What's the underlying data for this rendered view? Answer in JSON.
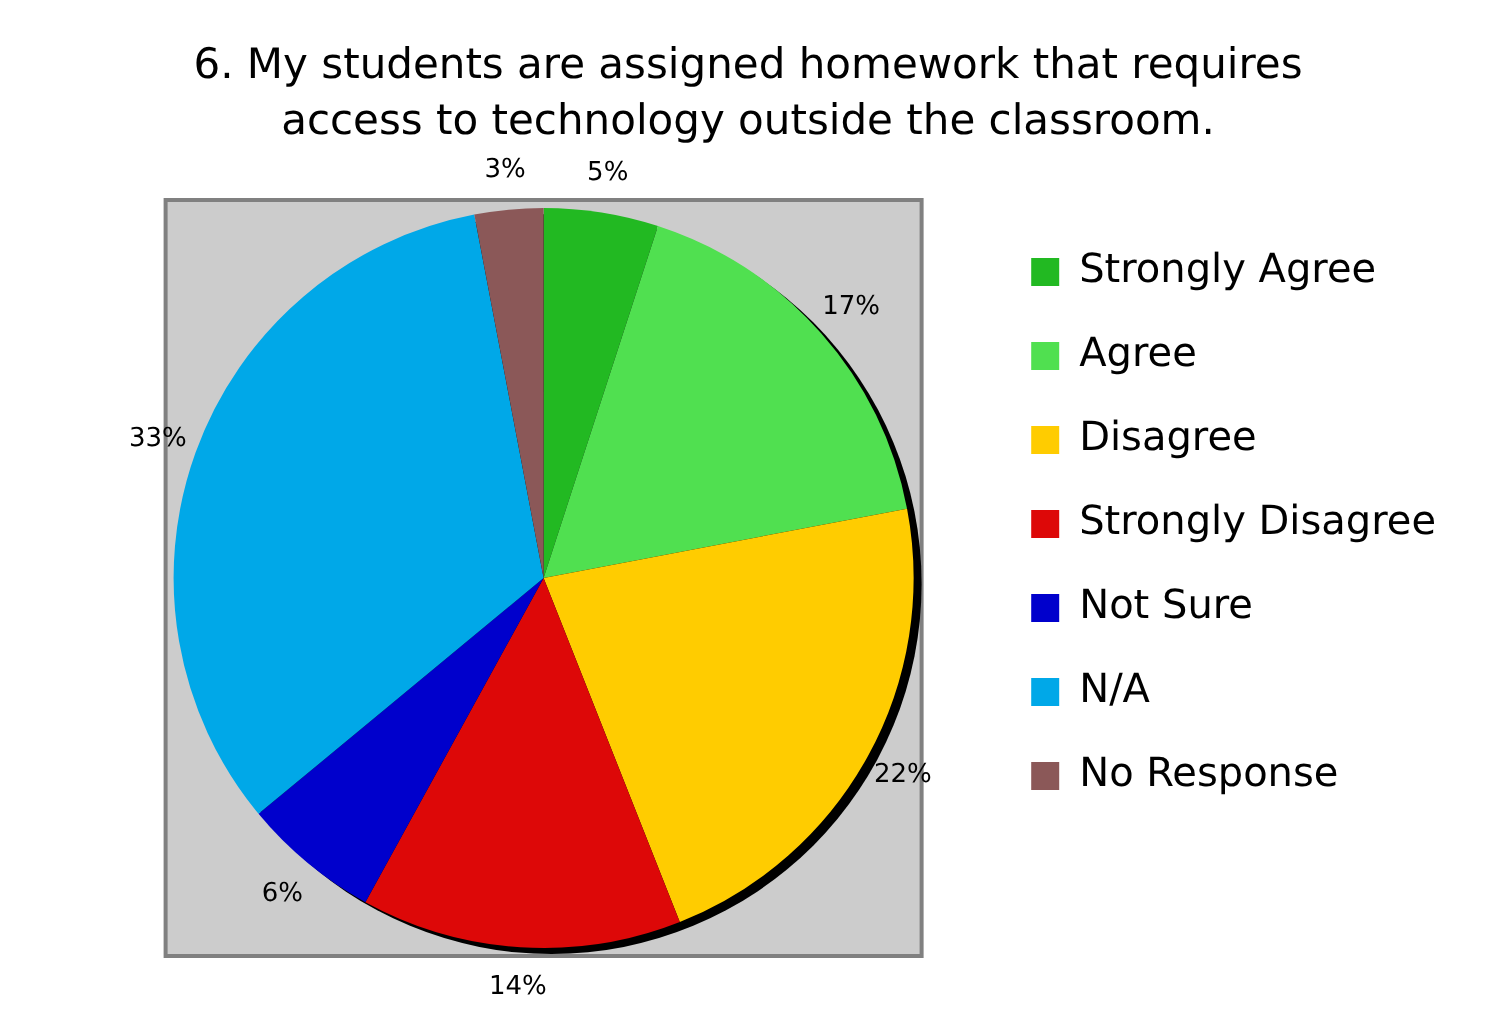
{
  "chart_data": {
    "type": "pie",
    "title": "6. My students are assigned homework that requires access to technology outside the classroom.",
    "categories": [
      "Strongly Agree",
      "Agree",
      "Disagree",
      "Strongly Disagree",
      "Not Sure",
      "N/A",
      "No Response"
    ],
    "values": [
      5,
      17,
      22,
      14,
      6,
      33,
      3
    ],
    "colors": [
      "#22b922",
      "#50e050",
      "#ffcc00",
      "#dd0808",
      "#0000cc",
      "#00a8e8",
      "#8b5858"
    ],
    "value_labels": [
      "5%",
      "17%",
      "22%",
      "14%",
      "6%",
      "33%",
      "3%"
    ],
    "legend": "right"
  }
}
